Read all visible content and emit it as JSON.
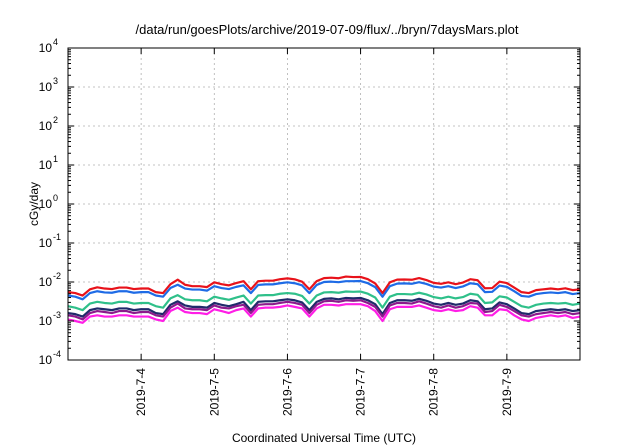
{
  "chart_data": {
    "type": "line",
    "title": "/data/run/goesPlots/archive/2019-07-09/flux/../bryn/7daysMars.plot",
    "xlabel": "Coordinated Universal Time (UTC)",
    "ylabel": "cGy/day",
    "yscale": "log",
    "ylim": [
      0.0001,
      10000
    ],
    "y_ticks": [
      {
        "base": "10",
        "exp": "4"
      },
      {
        "base": "10",
        "exp": "3"
      },
      {
        "base": "10",
        "exp": "2"
      },
      {
        "base": "10",
        "exp": "1"
      },
      {
        "base": "10",
        "exp": "0"
      },
      {
        "base": "10",
        "exp": "-1"
      },
      {
        "base": "10",
        "exp": "-2"
      },
      {
        "base": "10",
        "exp": "-3"
      },
      {
        "base": "10",
        "exp": "-4"
      }
    ],
    "xlim_days": [
      0,
      7
    ],
    "x_ticks": [
      {
        "label": "2019-7-4",
        "day": 1
      },
      {
        "label": "2019-7-5",
        "day": 2
      },
      {
        "label": "2019-7-6",
        "day": 3
      },
      {
        "label": "2019-7-7",
        "day": 4
      },
      {
        "label": "2019-7-8",
        "day": 5
      },
      {
        "label": "2019-7-9",
        "day": 6
      }
    ],
    "grid": true,
    "x": [
      0.0,
      0.1,
      0.2,
      0.3,
      0.4,
      0.5,
      0.6,
      0.7,
      0.8,
      0.9,
      1.0,
      1.1,
      1.2,
      1.3,
      1.4,
      1.5,
      1.6,
      1.7,
      1.8,
      1.9,
      2.0,
      2.1,
      2.2,
      2.3,
      2.4,
      2.5,
      2.6,
      2.7,
      2.8,
      2.9,
      3.0,
      3.1,
      3.2,
      3.3,
      3.4,
      3.5,
      3.6,
      3.7,
      3.8,
      3.9,
      4.0,
      4.1,
      4.2,
      4.3,
      4.4,
      4.5,
      4.6,
      4.7,
      4.8,
      4.9,
      5.0,
      5.1,
      5.2,
      5.3,
      5.4,
      5.5,
      5.6,
      5.7,
      5.8,
      5.9,
      6.0,
      6.1,
      6.2,
      6.3,
      6.4,
      6.5,
      6.6,
      6.7,
      6.8,
      6.9,
      7.0
    ],
    "series": [
      {
        "name": "red",
        "color": "#e8121a",
        "values": [
          0.0055,
          0.0052,
          0.0045,
          0.0065,
          0.0073,
          0.0068,
          0.0066,
          0.0072,
          0.0072,
          0.0066,
          0.0068,
          0.0068,
          0.0055,
          0.0052,
          0.0088,
          0.0115,
          0.0085,
          0.0078,
          0.0078,
          0.0074,
          0.0098,
          0.0088,
          0.0082,
          0.0094,
          0.0105,
          0.0065,
          0.0105,
          0.0108,
          0.0108,
          0.0118,
          0.0124,
          0.0117,
          0.0102,
          0.0065,
          0.0105,
          0.0126,
          0.0129,
          0.0125,
          0.0138,
          0.0134,
          0.0135,
          0.0118,
          0.0092,
          0.0052,
          0.0098,
          0.0115,
          0.0116,
          0.0114,
          0.0126,
          0.0112,
          0.0095,
          0.009,
          0.0098,
          0.0088,
          0.0097,
          0.0118,
          0.0111,
          0.0069,
          0.007,
          0.0102,
          0.0094,
          0.0072,
          0.0055,
          0.0052,
          0.0062,
          0.0065,
          0.0068,
          0.0065,
          0.0069,
          0.0062,
          0.0065
        ]
      },
      {
        "name": "blue",
        "color": "#1e6be6",
        "values": [
          0.0045,
          0.0042,
          0.0036,
          0.0052,
          0.0058,
          0.0054,
          0.0053,
          0.0058,
          0.0058,
          0.0053,
          0.0055,
          0.0055,
          0.0045,
          0.0042,
          0.007,
          0.0085,
          0.0068,
          0.0064,
          0.0064,
          0.006,
          0.0078,
          0.007,
          0.0066,
          0.0075,
          0.0082,
          0.0052,
          0.0084,
          0.0087,
          0.0087,
          0.0093,
          0.0098,
          0.0093,
          0.0082,
          0.0052,
          0.0084,
          0.01,
          0.0102,
          0.0099,
          0.0105,
          0.0105,
          0.0106,
          0.0093,
          0.0074,
          0.0042,
          0.0078,
          0.0091,
          0.0092,
          0.009,
          0.0099,
          0.0089,
          0.0076,
          0.0072,
          0.0078,
          0.007,
          0.0077,
          0.0093,
          0.0088,
          0.0055,
          0.0056,
          0.0081,
          0.0075,
          0.0058,
          0.0044,
          0.0042,
          0.0049,
          0.0052,
          0.0054,
          0.0052,
          0.0055,
          0.0049,
          0.0052
        ]
      },
      {
        "name": "green",
        "color": "#2fc08a",
        "values": [
          0.0024,
          0.0022,
          0.0019,
          0.0028,
          0.0031,
          0.0029,
          0.0028,
          0.0031,
          0.0031,
          0.0028,
          0.0029,
          0.0029,
          0.0024,
          0.0022,
          0.0038,
          0.0046,
          0.0036,
          0.0034,
          0.0034,
          0.0032,
          0.0042,
          0.0038,
          0.0035,
          0.004,
          0.0045,
          0.0028,
          0.0045,
          0.0046,
          0.0046,
          0.005,
          0.0052,
          0.005,
          0.0044,
          0.0028,
          0.0045,
          0.0054,
          0.0055,
          0.0053,
          0.0057,
          0.0056,
          0.0057,
          0.005,
          0.004,
          0.0022,
          0.0042,
          0.0049,
          0.0049,
          0.0048,
          0.0053,
          0.0048,
          0.0041,
          0.0038,
          0.0042,
          0.0038,
          0.0041,
          0.005,
          0.0047,
          0.0029,
          0.003,
          0.0043,
          0.004,
          0.0031,
          0.0024,
          0.0022,
          0.0026,
          0.0028,
          0.0029,
          0.0028,
          0.0029,
          0.0026,
          0.0028
        ]
      },
      {
        "name": "navy",
        "color": "#202a6b",
        "values": [
          0.0016,
          0.0015,
          0.0013,
          0.0019,
          0.0021,
          0.002,
          0.0019,
          0.0021,
          0.0021,
          0.0019,
          0.002,
          0.002,
          0.0016,
          0.0015,
          0.0026,
          0.0032,
          0.0025,
          0.0023,
          0.0023,
          0.0022,
          0.0029,
          0.0026,
          0.0024,
          0.0027,
          0.0031,
          0.0019,
          0.0031,
          0.0032,
          0.0032,
          0.0034,
          0.0036,
          0.0034,
          0.003,
          0.0019,
          0.0031,
          0.0037,
          0.0038,
          0.0036,
          0.0039,
          0.0038,
          0.0039,
          0.0034,
          0.0027,
          0.0015,
          0.0029,
          0.0034,
          0.0034,
          0.0033,
          0.0037,
          0.0033,
          0.0028,
          0.0026,
          0.0029,
          0.0026,
          0.0028,
          0.0034,
          0.0032,
          0.002,
          0.0021,
          0.003,
          0.0027,
          0.0021,
          0.0016,
          0.0015,
          0.0018,
          0.0019,
          0.002,
          0.0019,
          0.002,
          0.0018,
          0.0019
        ]
      },
      {
        "name": "purple",
        "color": "#8c1a8c",
        "values": [
          0.0014,
          0.0013,
          0.0011,
          0.0016,
          0.0018,
          0.0017,
          0.0016,
          0.0018,
          0.0018,
          0.0016,
          0.0017,
          0.0017,
          0.0014,
          0.0013,
          0.0022,
          0.0028,
          0.0021,
          0.002,
          0.002,
          0.0019,
          0.0025,
          0.0022,
          0.0021,
          0.0024,
          0.0026,
          0.0016,
          0.0026,
          0.0027,
          0.0027,
          0.0029,
          0.0031,
          0.0029,
          0.0026,
          0.0016,
          0.0026,
          0.0032,
          0.0033,
          0.0031,
          0.0034,
          0.0033,
          0.0034,
          0.0029,
          0.0023,
          0.0013,
          0.0025,
          0.0029,
          0.0029,
          0.0028,
          0.0032,
          0.0028,
          0.0024,
          0.0022,
          0.0025,
          0.0022,
          0.0024,
          0.0029,
          0.0028,
          0.0017,
          0.0018,
          0.0026,
          0.0023,
          0.0018,
          0.0014,
          0.0013,
          0.0015,
          0.0016,
          0.0017,
          0.0016,
          0.0017,
          0.0015,
          0.0016
        ]
      },
      {
        "name": "magenta",
        "color": "#ff1ee6",
        "values": [
          0.0011,
          0.001,
          0.0009,
          0.0013,
          0.0014,
          0.0013,
          0.0013,
          0.0014,
          0.0014,
          0.0013,
          0.0013,
          0.0013,
          0.0011,
          0.001,
          0.0018,
          0.0022,
          0.0017,
          0.0016,
          0.0016,
          0.0015,
          0.002,
          0.0018,
          0.0016,
          0.0019,
          0.0021,
          0.0013,
          0.0021,
          0.0022,
          0.0022,
          0.0023,
          0.0025,
          0.0023,
          0.0021,
          0.0013,
          0.0021,
          0.0026,
          0.0026,
          0.0025,
          0.0027,
          0.0027,
          0.0027,
          0.0024,
          0.0018,
          0.001,
          0.002,
          0.0023,
          0.0023,
          0.0023,
          0.0025,
          0.0022,
          0.0019,
          0.0018,
          0.002,
          0.0018,
          0.0019,
          0.0024,
          0.0022,
          0.0014,
          0.0014,
          0.002,
          0.0019,
          0.0014,
          0.0011,
          0.001,
          0.0012,
          0.0013,
          0.0014,
          0.0013,
          0.0014,
          0.0012,
          0.0013
        ]
      }
    ]
  }
}
